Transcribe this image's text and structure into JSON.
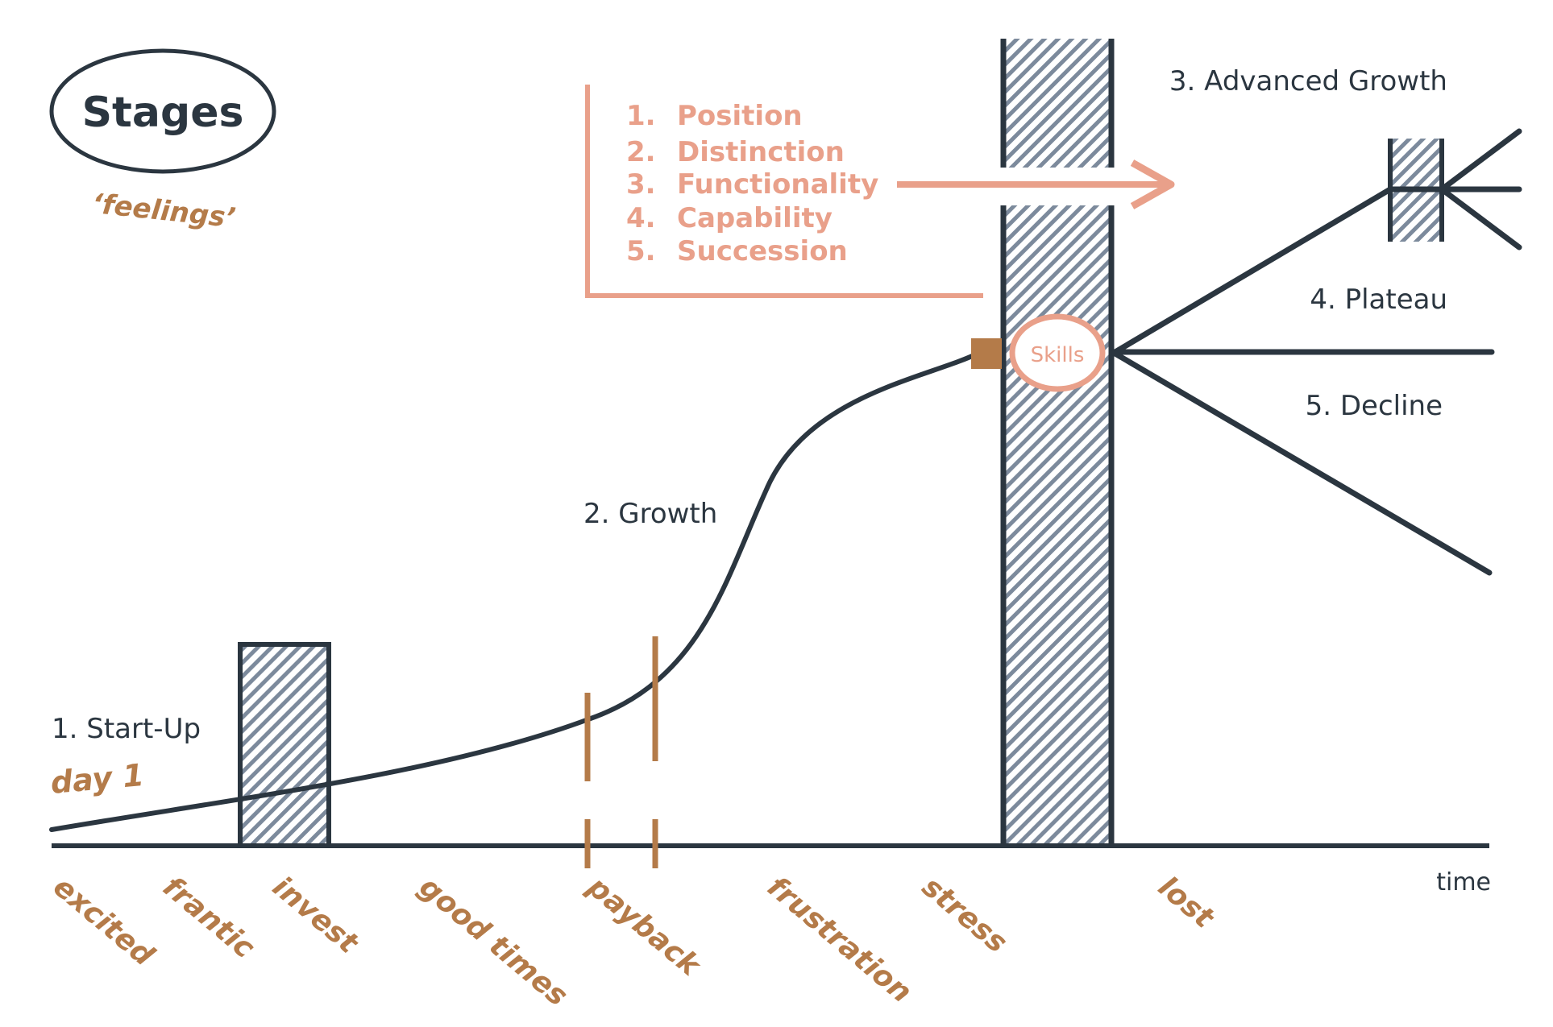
{
  "title": "Stages",
  "subtitle": "‘feelings’",
  "stages": {
    "start_up": "1. Start-Up",
    "day_one": "day 1",
    "growth": "2. Growth",
    "advanced_growth": "3. Advanced Growth",
    "plateau": "4. Plateau",
    "decline": "5. Decline"
  },
  "list_items": [
    {
      "num": "1.",
      "text": "Position"
    },
    {
      "num": "2.",
      "text": "Distinction"
    },
    {
      "num": "3.",
      "text": "Functionality"
    },
    {
      "num": "4.",
      "text": "Capability"
    },
    {
      "num": "5.",
      "text": "Succession"
    }
  ],
  "skills_label": "Skills",
  "axis_label": "time",
  "feelings": [
    "excited",
    "frantic",
    "invest",
    "good times",
    "payback",
    "frustration",
    "stress",
    "lost"
  ],
  "colors": {
    "dark": "#2b3640",
    "salmon": "#e9a08a",
    "brown": "#b47b49",
    "hatch": "#7c8a9c"
  }
}
